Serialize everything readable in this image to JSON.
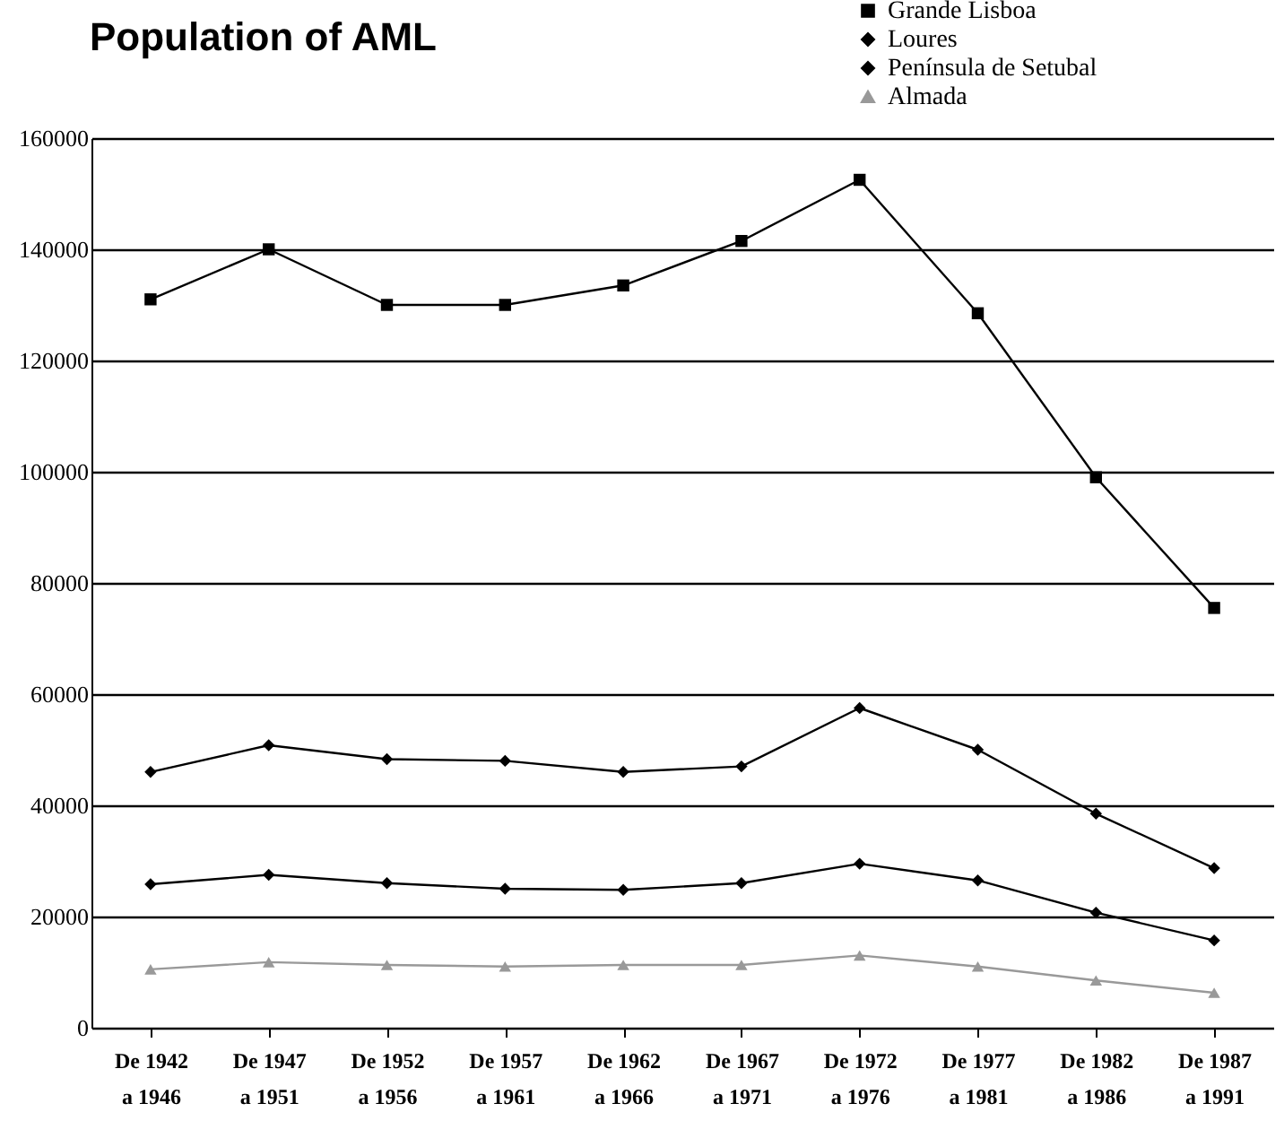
{
  "chart_data": {
    "type": "line",
    "title": "Population of AML",
    "categories": [
      "De 1942\na 1946",
      "De 1947\na 1951",
      "De 1952\na 1956",
      "De 1957\na 1961",
      "De 1962\na 1966",
      "De 1967\na 1971",
      "De 1972\na 1976",
      "De 1977\na 1981",
      "De 1982\na 1986",
      "De 1987\na 1991"
    ],
    "series": [
      {
        "name": "Grande Lisboa",
        "color": "#000000",
        "marker": "square",
        "values": [
          131000,
          140000,
          130000,
          130000,
          133500,
          141500,
          152500,
          128500,
          99000,
          75500
        ]
      },
      {
        "name": "Loures",
        "color": "#000000",
        "marker": "diamond",
        "values": [
          25800,
          27500,
          26000,
          25000,
          24800,
          26000,
          29500,
          26500,
          20700,
          15700
        ]
      },
      {
        "name": "Península de Setubal",
        "color": "#000000",
        "marker": "diamond",
        "values": [
          46000,
          50800,
          48300,
          48000,
          46000,
          47000,
          57500,
          50000,
          38500,
          28700
        ]
      },
      {
        "name": "Almada",
        "color": "#999999",
        "marker": "triangle",
        "values": [
          10500,
          11800,
          11300,
          11000,
          11300,
          11300,
          13000,
          11000,
          8500,
          6300
        ]
      }
    ],
    "ylim": [
      0,
      160000
    ],
    "yticks": [
      0,
      20000,
      40000,
      60000,
      80000,
      100000,
      120000,
      140000,
      160000
    ],
    "grid": "y",
    "legend": "top right"
  }
}
